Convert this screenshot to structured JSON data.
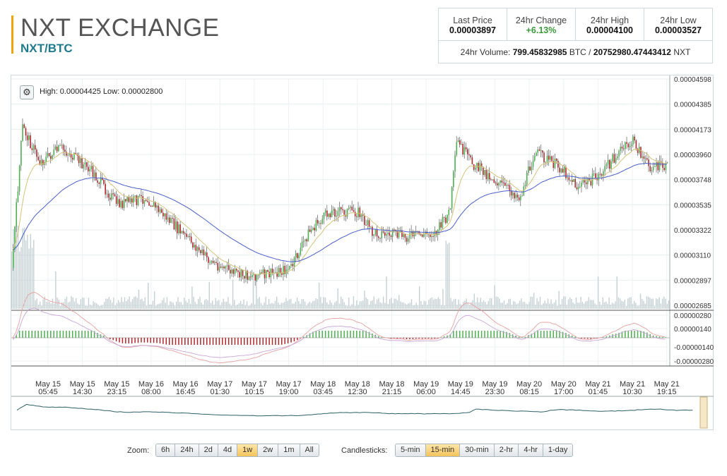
{
  "header": {
    "title": "NXT EXCHANGE",
    "pair": "NXT/BTC"
  },
  "stats": {
    "last_price_label": "Last Price",
    "last_price": "0.00003897",
    "change_label": "24hr Change",
    "change": "+6.13%",
    "high_label": "24hr High",
    "high": "0.00004100",
    "low_label": "24hr Low",
    "low": "0.00003527",
    "volume_label": "24hr Volume:",
    "volume_btc": "799.45832985",
    "btc_unit": "BTC",
    "sep": "/",
    "volume_nxt": "20752980.47443412",
    "nxt_unit": "NXT"
  },
  "chart": {
    "high_low_text": "High: 0.00004425  Low: 0.00002800",
    "price_ticks": [
      "0.00004598",
      "0.00004385",
      "0.00004173",
      "0.00003960",
      "0.00003748",
      "0.00003535",
      "0.00003322",
      "0.00003110",
      "0.00002897",
      "0.00002685"
    ],
    "macd_ticks": [
      "0.00000280",
      "0.00000140",
      "-0.00000140",
      "-0.00000280"
    ],
    "x_ticks": [
      [
        "May 15",
        "05:45"
      ],
      [
        "May 15",
        "14:30"
      ],
      [
        "May 15",
        "23:15"
      ],
      [
        "May 16",
        "08:00"
      ],
      [
        "May 16",
        "16:45"
      ],
      [
        "May 17",
        "01:30"
      ],
      [
        "May 17",
        "10:15"
      ],
      [
        "May 17",
        "19:00"
      ],
      [
        "May 18",
        "03:45"
      ],
      [
        "May 18",
        "12:30"
      ],
      [
        "May 18",
        "21:15"
      ],
      [
        "May 19",
        "06:00"
      ],
      [
        "May 19",
        "14:45"
      ],
      [
        "May 19",
        "23:30"
      ],
      [
        "May 20",
        "08:15"
      ],
      [
        "May 20",
        "17:00"
      ],
      [
        "May 21",
        "01:45"
      ],
      [
        "May 21",
        "10:30"
      ],
      [
        "May 21",
        "19:15"
      ]
    ],
    "colors": {
      "up": "#4caf50",
      "down": "#b0282d",
      "ema_fast": "#d4c27a",
      "ema_slow": "#4a5fc9",
      "volume": "#c5d0d3"
    }
  },
  "controls": {
    "zoom_label": "Zoom:",
    "zoom": [
      "6h",
      "24h",
      "2d",
      "4d",
      "1w",
      "2w",
      "1m",
      "All"
    ],
    "zoom_active": "1w",
    "candle_label": "Candlesticks:",
    "candles": [
      "5-min",
      "15-min",
      "30-min",
      "2-hr",
      "4-hr",
      "1-day"
    ],
    "candle_active": "15-min"
  },
  "icons": {
    "settings": "gear-icon"
  }
}
